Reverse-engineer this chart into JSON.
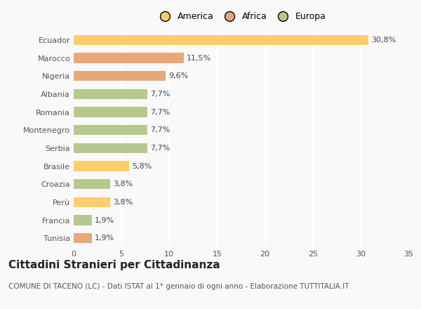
{
  "categories": [
    "Ecuador",
    "Marocco",
    "Nigeria",
    "Albania",
    "Romania",
    "Montenegro",
    "Serbia",
    "Brasile",
    "Croazia",
    "Perù",
    "Francia",
    "Tunisia"
  ],
  "values": [
    30.8,
    11.5,
    9.6,
    7.7,
    7.7,
    7.7,
    7.7,
    5.8,
    3.8,
    3.8,
    1.9,
    1.9
  ],
  "labels": [
    "30,8%",
    "11,5%",
    "9,6%",
    "7,7%",
    "7,7%",
    "7,7%",
    "7,7%",
    "5,8%",
    "3,8%",
    "3,8%",
    "1,9%",
    "1,9%"
  ],
  "colors": [
    "#FDCE6B",
    "#E8A87C",
    "#E8A87C",
    "#B5C98E",
    "#B5C98E",
    "#B5C98E",
    "#B5C98E",
    "#FDCE6B",
    "#B5C98E",
    "#FDCE6B",
    "#B5C98E",
    "#E8A87C"
  ],
  "legend_labels": [
    "America",
    "Africa",
    "Europa"
  ],
  "legend_colors": [
    "#FDCE6B",
    "#E8A87C",
    "#B5C98E"
  ],
  "title": "Cittadini Stranieri per Cittadinanza",
  "subtitle": "COMUNE DI TACENO (LC) - Dati ISTAT al 1° gennaio di ogni anno - Elaborazione TUTTITALIA.IT",
  "xlim": [
    0,
    35
  ],
  "xticks": [
    0,
    5,
    10,
    15,
    20,
    25,
    30,
    35
  ],
  "background_color": "#f9f9f9",
  "grid_color": "#ffffff",
  "title_fontsize": 11,
  "subtitle_fontsize": 7.5,
  "label_fontsize": 8,
  "tick_fontsize": 8,
  "legend_fontsize": 9
}
